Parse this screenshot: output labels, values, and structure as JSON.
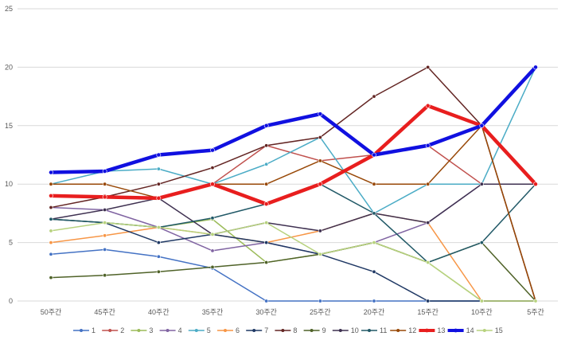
{
  "chart_data": {
    "type": "line",
    "title": "",
    "xlabel": "",
    "ylabel": "",
    "categories": [
      "50주간",
      "45주간",
      "40주간",
      "35주간",
      "30주간",
      "25주간",
      "20주간",
      "15주간",
      "10주간",
      "5주간"
    ],
    "ylim": [
      0,
      25
    ],
    "yticks": [
      0,
      5,
      10,
      15,
      20,
      25
    ],
    "grid": true,
    "legend_position": "bottom",
    "series": [
      {
        "name": "1",
        "color": "#4472c4",
        "values": [
          4,
          4.4,
          3.8,
          2.8,
          0,
          0,
          0,
          0,
          0,
          0
        ]
      },
      {
        "name": "2",
        "color": "#c0504d",
        "values": [
          9,
          9,
          8.8,
          10,
          13.3,
          12,
          12.5,
          13.3,
          10,
          10
        ]
      },
      {
        "name": "3",
        "color": "#9bbb59",
        "values": [
          7,
          6.7,
          6.3,
          7,
          3.3,
          4,
          5,
          3.3,
          0,
          0
        ]
      },
      {
        "name": "4",
        "color": "#8064a2",
        "values": [
          8,
          7.8,
          6.3,
          4.3,
          5,
          4,
          5,
          6.7,
          10,
          10
        ]
      },
      {
        "name": "5",
        "color": "#4bacc6",
        "values": [
          10,
          11.1,
          11.3,
          10,
          11.7,
          14,
          7.5,
          10,
          10,
          20
        ]
      },
      {
        "name": "6",
        "color": "#f79646",
        "values": [
          5,
          5.6,
          6.3,
          5.7,
          5,
          6,
          7.5,
          6.7,
          0,
          0
        ]
      },
      {
        "name": "7",
        "color": "#1f3864",
        "values": [
          7,
          6.7,
          5,
          5.7,
          5,
          4,
          2.5,
          0,
          0,
          0
        ]
      },
      {
        "name": "8",
        "color": "#632523",
        "values": [
          8,
          8.9,
          10,
          11.4,
          13.3,
          14,
          17.5,
          20,
          15,
          0
        ]
      },
      {
        "name": "9",
        "color": "#4f6228",
        "values": [
          2,
          2.2,
          2.5,
          2.9,
          3.3,
          4,
          5,
          3.3,
          5,
          0
        ]
      },
      {
        "name": "10",
        "color": "#3f3151",
        "values": [
          7,
          7.8,
          8.8,
          5.7,
          6.7,
          6,
          7.5,
          6.7,
          10,
          10
        ]
      },
      {
        "name": "11",
        "color": "#215967",
        "values": [
          7,
          6.7,
          6.3,
          7.1,
          8.3,
          10,
          7.5,
          3.3,
          5,
          10
        ]
      },
      {
        "name": "12",
        "color": "#984807",
        "values": [
          10,
          10,
          8.8,
          10,
          10,
          12,
          10,
          10,
          15,
          0
        ]
      },
      {
        "name": "13",
        "color": "#e81e1e",
        "values": [
          9,
          8.9,
          8.8,
          10,
          8.3,
          10,
          12.5,
          16.7,
          15,
          10
        ],
        "bold": true
      },
      {
        "name": "14",
        "color": "#1010e0",
        "values": [
          11,
          11.1,
          12.5,
          12.9,
          15,
          16,
          12.5,
          13.3,
          15,
          20
        ],
        "bold": true
      },
      {
        "name": "15",
        "color": "#b7d27e",
        "values": [
          6,
          6.7,
          6.3,
          5.7,
          6.7,
          4,
          5,
          3.3,
          0,
          0
        ]
      }
    ]
  }
}
